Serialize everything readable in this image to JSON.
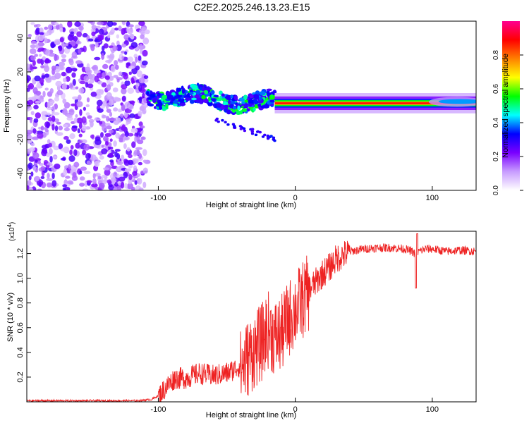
{
  "page": {
    "title": "C2E2.2025.246.13.23.E15"
  },
  "chart_data": [
    {
      "type": "heatmap",
      "name": "spectrogram",
      "title": "C2E2.2025.246.13.23.E15",
      "xlabel": "Height of straight line (km)",
      "ylabel": "Frequency (Hz)",
      "xlim": [
        -196,
        132
      ],
      "ylim": [
        -50,
        50
      ],
      "x_ticks": [
        -100,
        0,
        100
      ],
      "x_tick_labels": [
        "-100",
        "0",
        "100"
      ],
      "y_ticks": [
        -40,
        -20,
        0,
        20,
        40
      ],
      "y_tick_labels": [
        "-40",
        "-20",
        "0",
        "20",
        "40"
      ],
      "colorbar": {
        "label": "Normalized spectral amplitude",
        "range": [
          0,
          1
        ],
        "ticks": [
          0,
          0.2,
          0.4,
          0.6,
          0.8
        ],
        "tick_labels": [
          "0.0",
          "0.2",
          "0.4",
          "0.6",
          "0.8"
        ],
        "colormap": [
          "#ffffff",
          "#c89cff",
          "#7a00ff",
          "#0000ff",
          "#00ffff",
          "#00ff00",
          "#ffff00",
          "#ff8000",
          "#ff0000",
          "#ff0090"
        ]
      },
      "regions": [
        {
          "description": "broadband noise",
          "x_range": [
            -196,
            -108
          ],
          "freq_range": [
            -50,
            50
          ],
          "amplitude": 0.15
        },
        {
          "description": "transition band",
          "x_range": [
            -108,
            -15
          ],
          "freq_center": 2,
          "freq_halfwidth": 5,
          "amplitude": 0.35
        },
        {
          "description": "steady tone",
          "x_range": [
            -15,
            132
          ],
          "freq_center": 1.5,
          "freq_halfwidth": 1.5,
          "amplitude": 0.9
        }
      ]
    },
    {
      "type": "line",
      "name": "snr",
      "xlabel": "Height of straight line (km)",
      "ylabel": "SNR (10 * v/v)",
      "y_scale_label": "(x10",
      "y_scale_exponent": "4",
      "xlim": [
        -196,
        132
      ],
      "ylim": [
        0,
        1.38
      ],
      "x_ticks": [
        -100,
        0,
        100
      ],
      "x_tick_labels": [
        "-100",
        "0",
        "100"
      ],
      "y_ticks": [
        0.2,
        0.4,
        0.6,
        0.8,
        1.0,
        1.2
      ],
      "y_tick_labels": [
        "0.2",
        "0.4",
        "0.6",
        "0.8",
        "1.0",
        "1.2"
      ],
      "color": "#ee2222",
      "series": [
        {
          "name": "SNR",
          "x": [
            -196,
            -170,
            -140,
            -115,
            -105,
            -100,
            -95,
            -88,
            -80,
            -70,
            -60,
            -50,
            -40,
            -35,
            -30,
            -25,
            -20,
            -15,
            -10,
            -5,
            0,
            5,
            10,
            15,
            20,
            25,
            30,
            35,
            40,
            50,
            60,
            70,
            80,
            85,
            88,
            90,
            95,
            100,
            110,
            120,
            132
          ],
          "y": [
            0.01,
            0.01,
            0.01,
            0.01,
            0.02,
            0.05,
            0.12,
            0.2,
            0.2,
            0.24,
            0.22,
            0.24,
            0.3,
            0.38,
            0.45,
            0.5,
            0.62,
            0.55,
            0.58,
            0.7,
            0.78,
            0.85,
            0.92,
            0.98,
            1.05,
            1.1,
            1.17,
            1.2,
            1.22,
            1.24,
            1.25,
            1.25,
            1.24,
            1.22,
            1.2,
            1.22,
            1.24,
            1.24,
            1.22,
            1.23,
            1.22
          ]
        }
      ]
    }
  ]
}
